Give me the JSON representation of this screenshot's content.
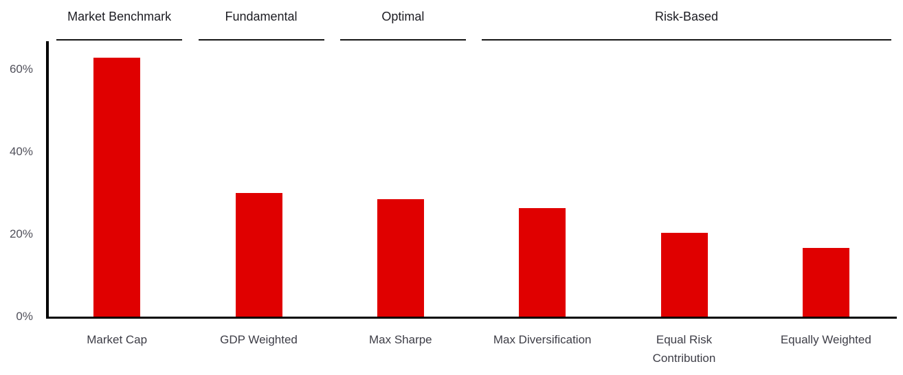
{
  "chart_data": {
    "type": "bar",
    "categories": [
      "Market Cap",
      "GDP Weighted",
      "Max Sharpe",
      "Max Diversification",
      "Equal Risk Contribution",
      "Equally Weighted"
    ],
    "values": [
      62.8,
      30.0,
      28.5,
      26.4,
      20.4,
      16.7
    ],
    "tick_labels": [
      [
        "Market Cap"
      ],
      [
        "GDP Weighted"
      ],
      [
        "Max Sharpe"
      ],
      [
        "Max Diversification"
      ],
      [
        "Equal Risk",
        "Contribution"
      ],
      [
        "Equally Weighted"
      ]
    ],
    "groups": [
      {
        "label": "Market Benchmark",
        "from": 0,
        "to": 0
      },
      {
        "label": "Fundamental",
        "from": 1,
        "to": 1
      },
      {
        "label": "Optimal",
        "from": 2,
        "to": 2
      },
      {
        "label": "Risk-Based",
        "from": 3,
        "to": 5
      }
    ],
    "y_ticks": [
      "0%",
      "20%",
      "40%",
      "60%"
    ],
    "y_tick_values": [
      0,
      20,
      40,
      60
    ],
    "ylim": [
      0,
      67
    ],
    "grid": false,
    "legend": "none",
    "bar_color": "#e00000",
    "axis_color": "#000000"
  }
}
